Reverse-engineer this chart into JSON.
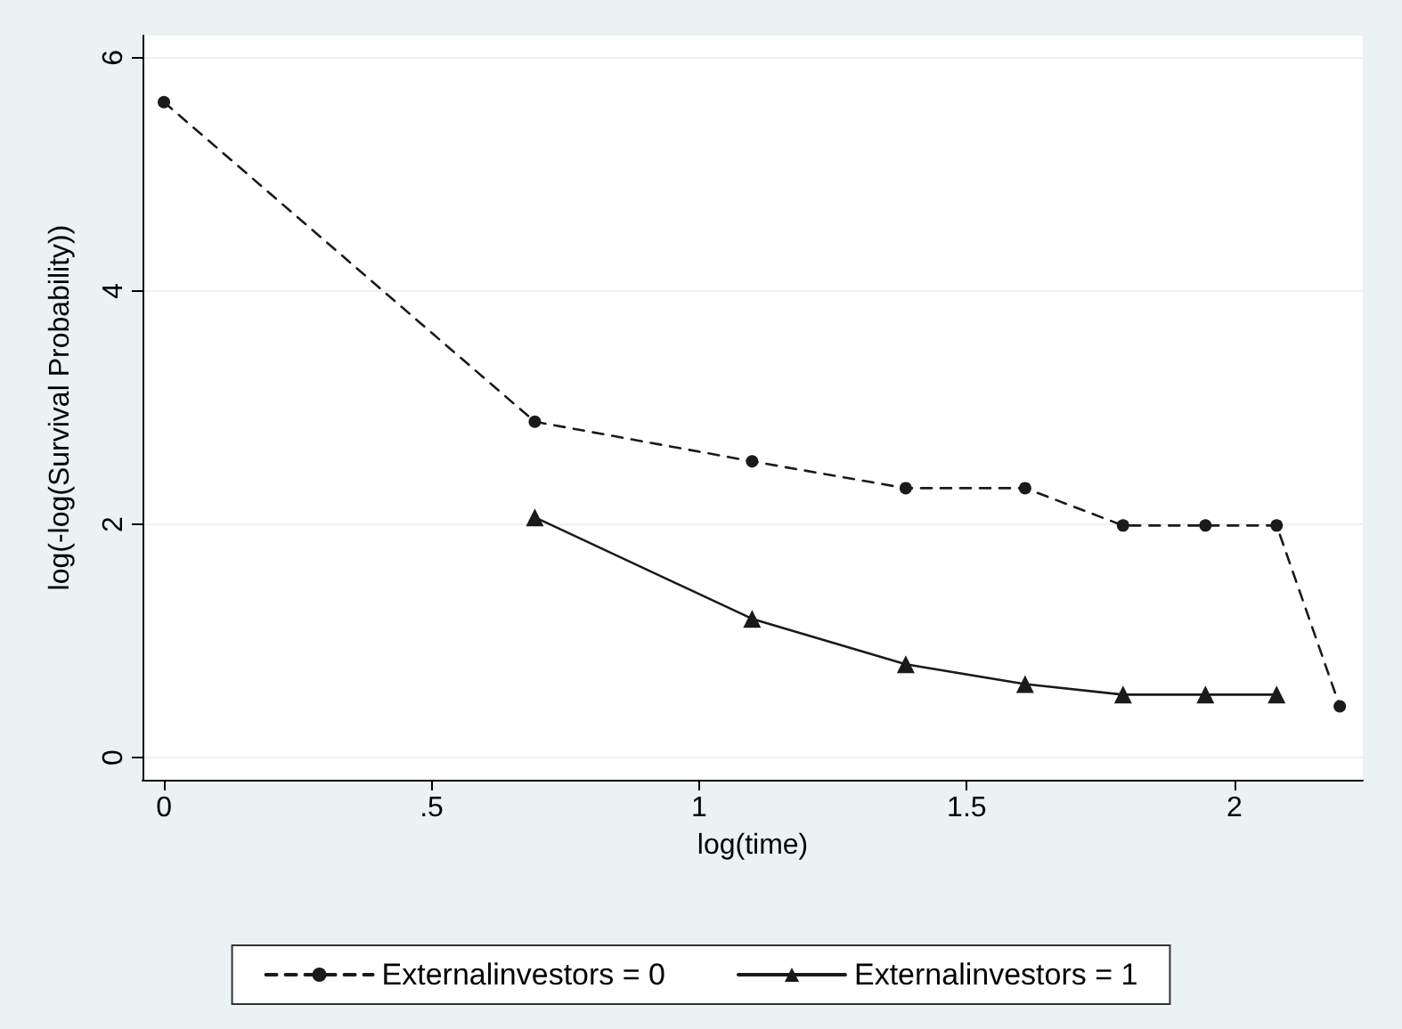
{
  "chart_data": {
    "type": "line",
    "xlabel": "log(time)",
    "ylabel": "log(-log(Survival Probability))",
    "xlim": [
      -0.04,
      2.24
    ],
    "xticks": [
      {
        "value": 0,
        "label": "0"
      },
      {
        "value": 0.5,
        "label": ".5"
      },
      {
        "value": 1,
        "label": "1"
      },
      {
        "value": 1.5,
        "label": "1.5"
      },
      {
        "value": 2,
        "label": "2"
      }
    ],
    "ylim": [
      -0.19,
      6.19
    ],
    "yticks": [
      0,
      2,
      4,
      6
    ],
    "grid": "y",
    "legend": "bottom",
    "series": [
      {
        "name": "Externalinvestors = 0",
        "color": "#1a1a1a",
        "marker": "circle",
        "line_style": "dashed",
        "x": [
          0,
          0.693,
          1.099,
          1.386,
          1.609,
          1.792,
          1.946,
          2.079,
          2.197
        ],
        "values": [
          5.62,
          2.88,
          2.54,
          2.31,
          2.31,
          1.99,
          1.99,
          1.99,
          0.44
        ]
      },
      {
        "name": "Externalinvestors = 1",
        "color": "#1a1a1a",
        "marker": "triangle",
        "line_style": "solid",
        "x": [
          0.693,
          1.099,
          1.386,
          1.609,
          1.792,
          1.946,
          2.079
        ],
        "values": [
          2.06,
          1.19,
          0.8,
          0.63,
          0.54,
          0.54,
          0.54
        ]
      }
    ]
  }
}
